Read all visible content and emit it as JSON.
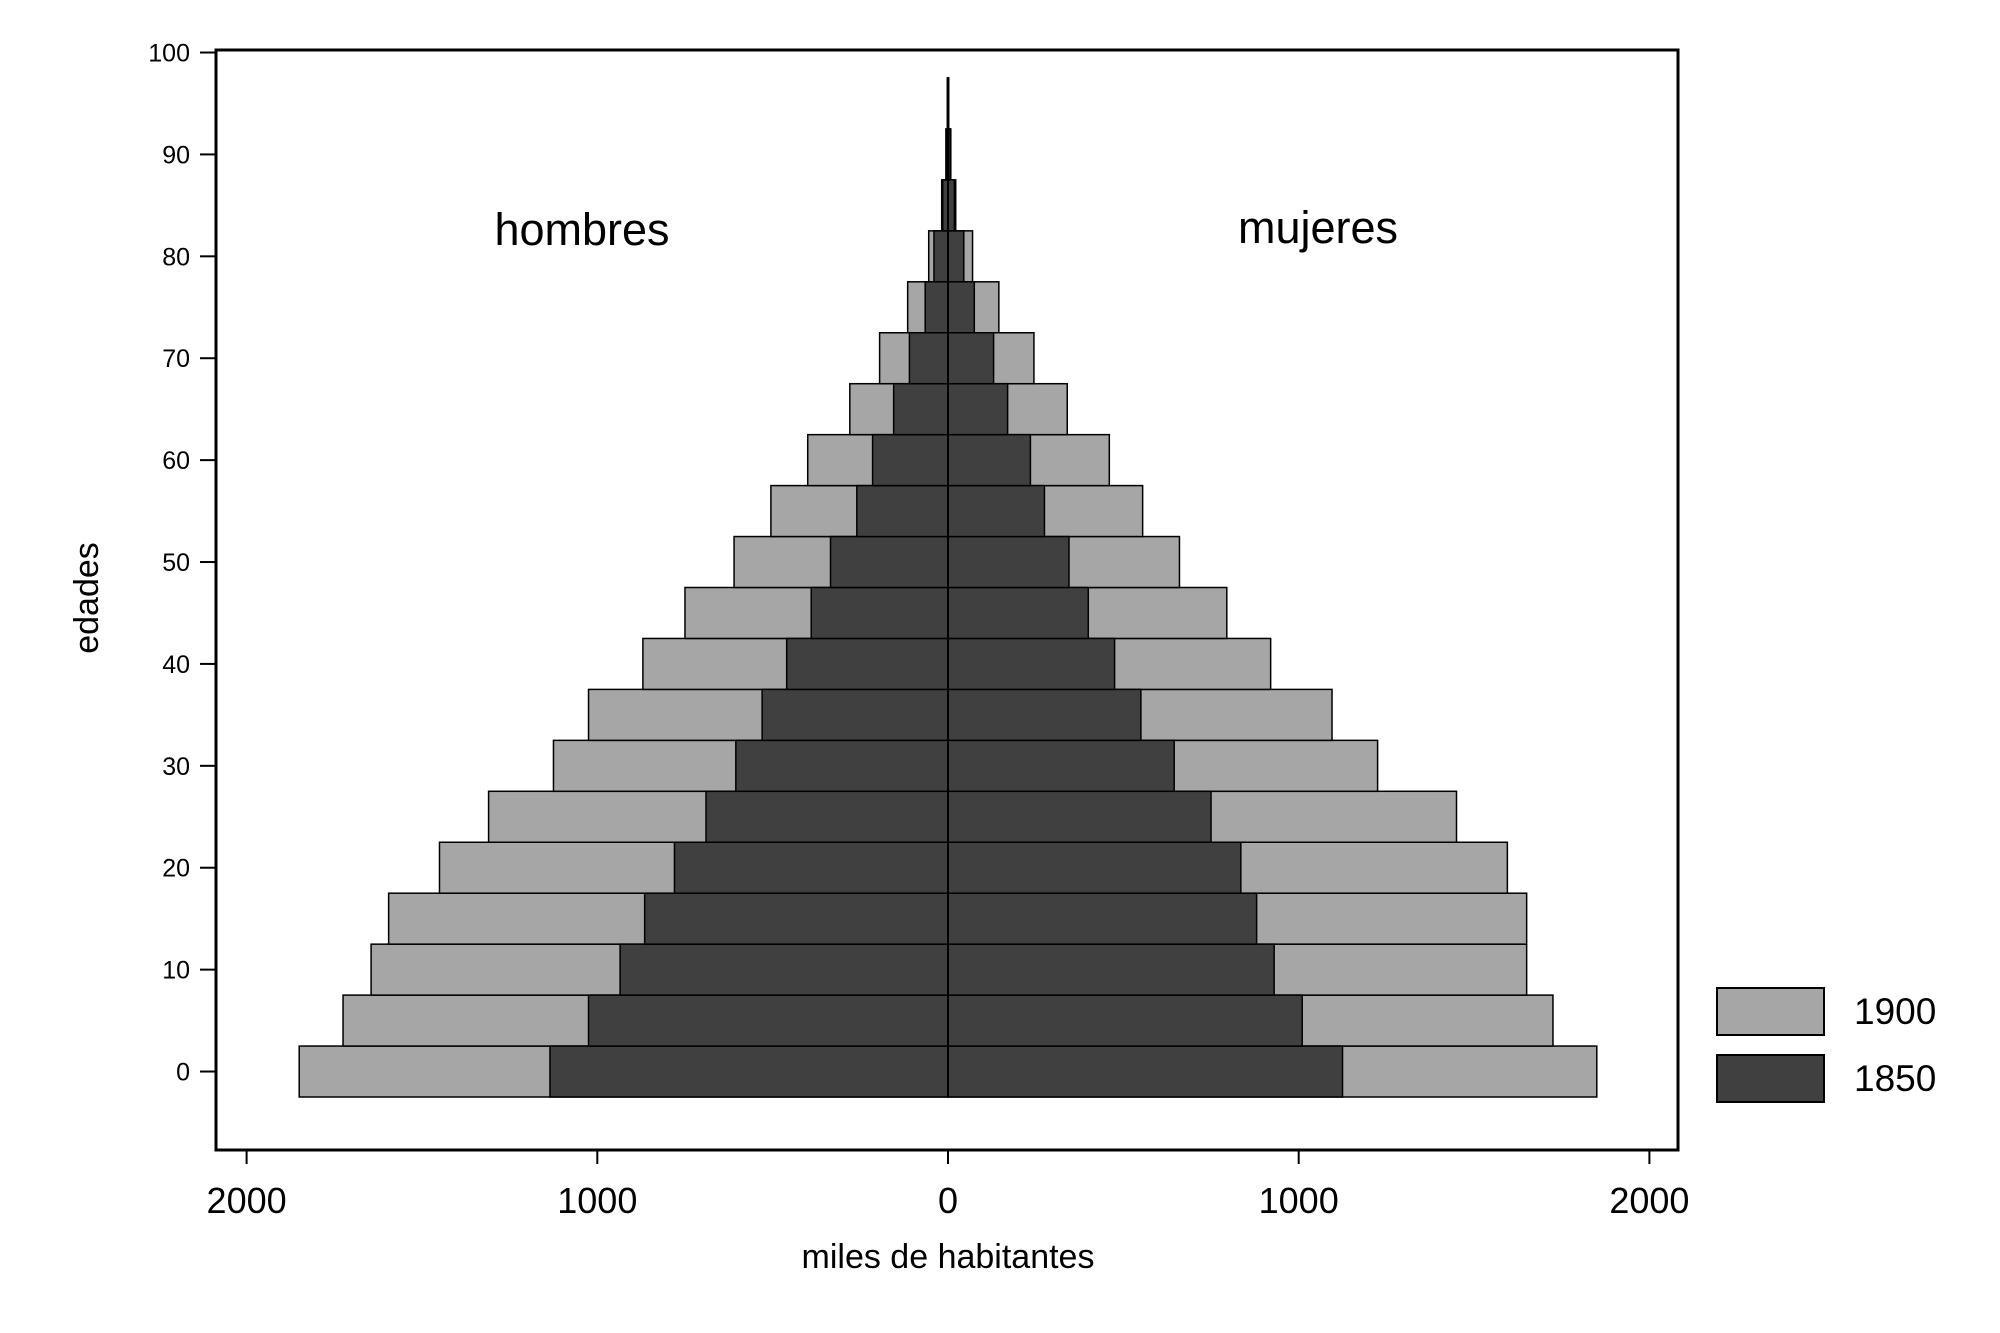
{
  "chart_data": {
    "type": "bar",
    "orientation": "horizontal",
    "subtype": "population-pyramid",
    "title": "",
    "xlabel": "miles de habitantes",
    "ylabel": "edades",
    "xlim": [
      -2000,
      2000
    ],
    "ylim": [
      -5,
      105
    ],
    "x_ticks": [
      -2000,
      -1000,
      0,
      1000,
      2000
    ],
    "x_tick_labels": [
      "2000",
      "1000",
      "0",
      "1000",
      "2000"
    ],
    "y_ticks": [
      0,
      10,
      20,
      30,
      40,
      50,
      60,
      70,
      80,
      90,
      100
    ],
    "y_tick_labels": [
      "0",
      "10",
      "20",
      "30",
      "40",
      "50",
      "60",
      "70",
      "80",
      "90",
      "100"
    ],
    "age_groups": [
      0,
      5,
      10,
      15,
      20,
      25,
      30,
      35,
      40,
      45,
      50,
      55,
      60,
      65,
      70,
      75,
      80,
      85,
      90,
      95
    ],
    "age_group_width": 5,
    "annotations": [
      {
        "text": "hombres",
        "side": "left"
      },
      {
        "text": "mujeres",
        "side": "right"
      }
    ],
    "legend": {
      "placement": "right-bottom",
      "entries": [
        "1900",
        "1850"
      ]
    },
    "series": [
      {
        "name": "1900",
        "color": "#a6a6a6",
        "men": [
          1850,
          1725,
          1645,
          1595,
          1450,
          1310,
          1125,
          1025,
          870,
          750,
          610,
          505,
          400,
          280,
          195,
          115,
          55,
          18,
          6,
          2
        ],
        "women": [
          1850,
          1725,
          1650,
          1650,
          1595,
          1450,
          1225,
          1095,
          920,
          795,
          660,
          555,
          460,
          340,
          245,
          145,
          70,
          22,
          8,
          2
        ]
      },
      {
        "name": "1850",
        "color": "#404040",
        "men": [
          1135,
          1025,
          935,
          865,
          780,
          690,
          605,
          530,
          460,
          390,
          335,
          260,
          215,
          155,
          110,
          65,
          40,
          15,
          5,
          1
        ],
        "women": [
          1125,
          1010,
          930,
          880,
          835,
          750,
          645,
          550,
          475,
          400,
          345,
          275,
          235,
          170,
          130,
          75,
          45,
          18,
          6,
          2
        ]
      }
    ],
    "colors": {
      "bar_outline": "#000000",
      "axis": "#000000",
      "background": "#ffffff"
    }
  }
}
